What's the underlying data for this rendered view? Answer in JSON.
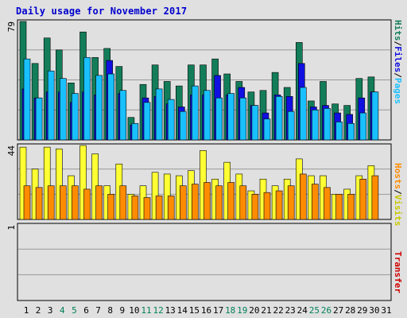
{
  "title": "Daily usage for November 2017",
  "colors": {
    "hits": "#137d5a",
    "files": "#1010e0",
    "pages": "#19c0ff",
    "visits": "#ffff33",
    "hosts": "#ff8c00",
    "transfer": "#d00000",
    "frame": "#000000",
    "background": "#e0e0e0",
    "grid": "#999999"
  },
  "side_labels": {
    "top": [
      {
        "text": "Hits",
        "color": "#137d5a"
      },
      {
        "text": "/",
        "color": "#000000"
      },
      {
        "text": "Files",
        "color": "#1010e0"
      },
      {
        "text": "/",
        "color": "#000000"
      },
      {
        "text": "Pages",
        "color": "#19c0ff"
      }
    ],
    "middle": [
      {
        "text": "Hosts",
        "color": "#ff8c00"
      },
      {
        "text": "/",
        "color": "#000000"
      },
      {
        "text": "Visits",
        "color": "#c8c800"
      }
    ],
    "bottom": [
      {
        "text": "Transfer",
        "color": "#d00000"
      }
    ]
  },
  "chart_data": [
    {
      "type": "bar",
      "panel": "hits-files-pages",
      "ymax_label": "79",
      "ylim": [
        0,
        79
      ],
      "categories": [
        "1",
        "2",
        "3",
        "4",
        "5",
        "6",
        "7",
        "8",
        "9",
        "10",
        "11",
        "12",
        "13",
        "14",
        "15",
        "16",
        "17",
        "18",
        "19",
        "20",
        "21",
        "22",
        "23",
        "24",
        "25",
        "26",
        "27",
        "28",
        "29",
        "30",
        "31"
      ],
      "weekend_days": [
        "4",
        "5",
        "11",
        "12",
        "18",
        "19",
        "25",
        "26"
      ],
      "series": [
        {
          "key": "hits",
          "values": [
            79,
            51,
            68,
            60,
            38,
            72,
            55,
            61,
            49,
            15,
            37,
            50,
            39,
            36,
            50,
            50,
            54,
            44,
            39,
            32,
            33,
            45,
            35,
            65,
            26,
            39,
            24,
            23,
            41,
            42,
            0
          ]
        },
        {
          "key": "files",
          "values": [
            34,
            28,
            32,
            32,
            25,
            32,
            30,
            53,
            31,
            10,
            28,
            29,
            24,
            22,
            30,
            30,
            43,
            30,
            35,
            23,
            18,
            30,
            29,
            51,
            22,
            23,
            18,
            17,
            28,
            32,
            0
          ]
        },
        {
          "key": "pages",
          "values": [
            54,
            28,
            46,
            41,
            31,
            55,
            43,
            44,
            33,
            11,
            25,
            34,
            27,
            19,
            36,
            33,
            28,
            31,
            28,
            23,
            14,
            29,
            19,
            35,
            20,
            21,
            12,
            11,
            18,
            32,
            0
          ]
        }
      ]
    },
    {
      "type": "bar",
      "panel": "visits-hosts",
      "ymax_label": "44",
      "ylim": [
        0,
        44
      ],
      "categories": [
        "1",
        "2",
        "3",
        "4",
        "5",
        "6",
        "7",
        "8",
        "9",
        "10",
        "11",
        "12",
        "13",
        "14",
        "15",
        "16",
        "17",
        "18",
        "19",
        "20",
        "21",
        "22",
        "23",
        "24",
        "25",
        "26",
        "27",
        "28",
        "29",
        "30",
        "31"
      ],
      "series": [
        {
          "key": "visits",
          "values": [
            43,
            30,
            43,
            42,
            26,
            44,
            39,
            20,
            33,
            15,
            20,
            28,
            27,
            26,
            29,
            41,
            24,
            34,
            27,
            17,
            24,
            20,
            24,
            36,
            26,
            26,
            15,
            18,
            26,
            32,
            0
          ]
        },
        {
          "key": "hosts",
          "values": [
            20,
            19,
            20,
            20,
            20,
            18,
            20,
            15,
            20,
            14,
            13,
            14,
            14,
            20,
            21,
            22,
            20,
            22,
            20,
            15,
            16,
            17,
            20,
            27,
            21,
            19,
            15,
            15,
            24,
            26,
            0
          ]
        }
      ]
    },
    {
      "type": "bar",
      "panel": "transfer",
      "ymax_label": "1",
      "ylim": [
        0,
        1
      ],
      "series": [
        {
          "key": "transfer",
          "values": [
            0,
            0,
            0,
            0,
            0,
            0,
            0,
            0,
            0,
            0,
            0,
            0,
            0,
            0,
            0,
            0,
            0,
            0,
            0,
            0,
            0,
            0,
            0,
            0,
            0,
            0,
            0,
            0,
            0,
            0,
            0
          ]
        }
      ]
    }
  ]
}
